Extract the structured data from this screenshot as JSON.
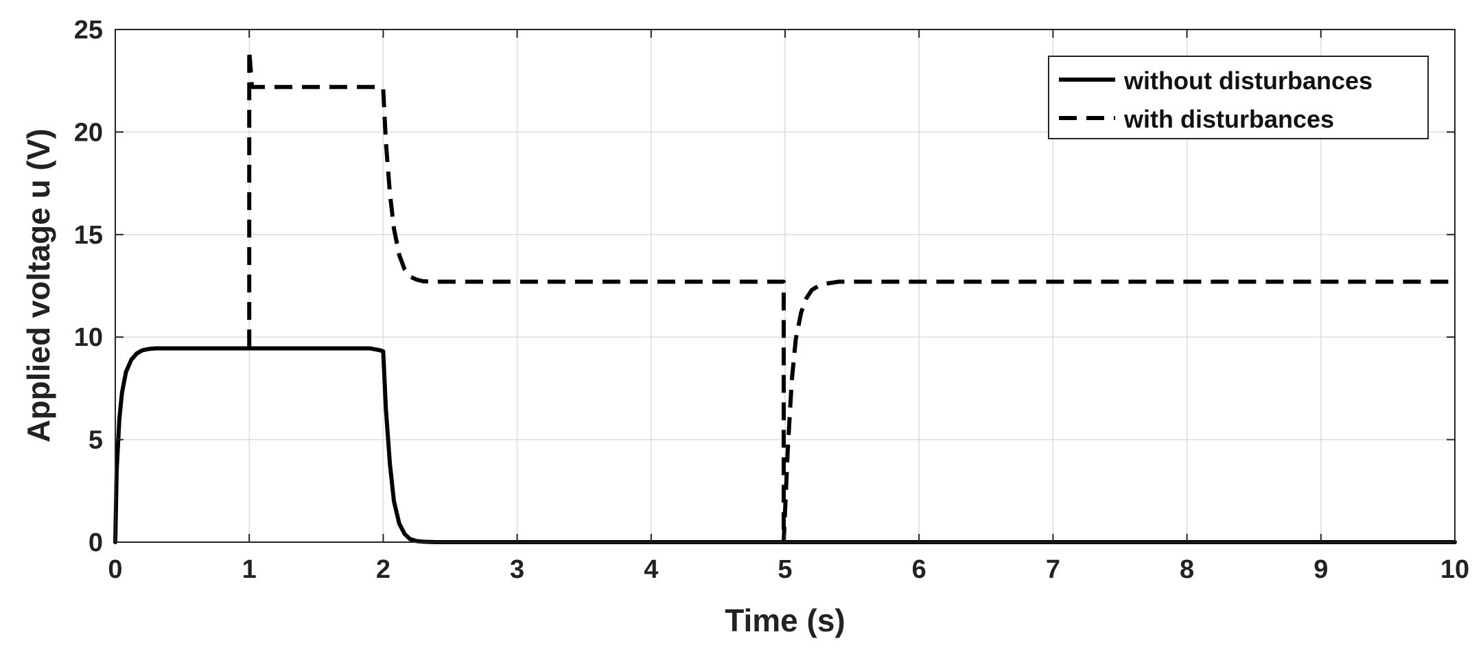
{
  "chart_data": {
    "type": "line",
    "title": "",
    "xlabel": "Time (s)",
    "ylabel": "Applied voltage u (V)",
    "xlim": [
      0,
      10
    ],
    "ylim": [
      0,
      25
    ],
    "xticks": [
      0,
      1,
      2,
      3,
      4,
      5,
      6,
      7,
      8,
      9,
      10
    ],
    "yticks": [
      0,
      5,
      10,
      15,
      20,
      25
    ],
    "xtick_labels": [
      "0",
      "1",
      "2",
      "3",
      "4",
      "5",
      "6",
      "7",
      "8",
      "9",
      "10"
    ],
    "ytick_labels": [
      "0",
      "5",
      "10",
      "15",
      "20",
      "25"
    ],
    "grid": true,
    "legend_position": "top-right",
    "colors": {
      "line": "#000000",
      "grid": "#dcdcdc",
      "axes": "#222222"
    },
    "series": [
      {
        "name": "without disturbances",
        "style": "solid",
        "x": [
          0,
          0.01,
          0.03,
          0.05,
          0.08,
          0.12,
          0.16,
          0.2,
          0.25,
          0.3,
          0.5,
          1.0,
          1.5,
          1.9,
          1.98,
          2.0,
          2.02,
          2.05,
          2.08,
          2.12,
          2.16,
          2.2,
          2.25,
          2.3,
          2.4,
          3,
          4,
          5,
          6,
          7,
          8,
          9,
          10
        ],
        "y": [
          0,
          3.5,
          6.0,
          7.3,
          8.3,
          8.9,
          9.2,
          9.35,
          9.42,
          9.45,
          9.45,
          9.45,
          9.45,
          9.45,
          9.35,
          9.3,
          6.5,
          3.8,
          2.0,
          0.9,
          0.4,
          0.15,
          0.05,
          0.02,
          0,
          0,
          0,
          0,
          0,
          0,
          0,
          0,
          0
        ]
      },
      {
        "name": "with disturbances",
        "style": "dashed",
        "x": [
          1.0,
          1.0,
          1.02,
          1.05,
          1.5,
          1.98,
          2.0,
          2.02,
          2.05,
          2.08,
          2.12,
          2.16,
          2.2,
          2.25,
          2.3,
          2.4,
          3,
          4,
          4.99,
          4.99,
          5.02,
          5.05,
          5.08,
          5.12,
          5.16,
          5.2,
          5.25,
          5.3,
          5.4,
          6,
          7,
          8,
          9,
          10
        ],
        "y": [
          9.5,
          24,
          22.2,
          22.2,
          22.2,
          22.2,
          22.1,
          19.5,
          17.0,
          15.3,
          14.0,
          13.3,
          12.95,
          12.8,
          12.72,
          12.7,
          12.7,
          12.7,
          12.7,
          0,
          4.5,
          7.9,
          9.9,
          11.2,
          11.9,
          12.3,
          12.5,
          12.6,
          12.7,
          12.7,
          12.7,
          12.7,
          12.7,
          12.7
        ]
      }
    ]
  }
}
